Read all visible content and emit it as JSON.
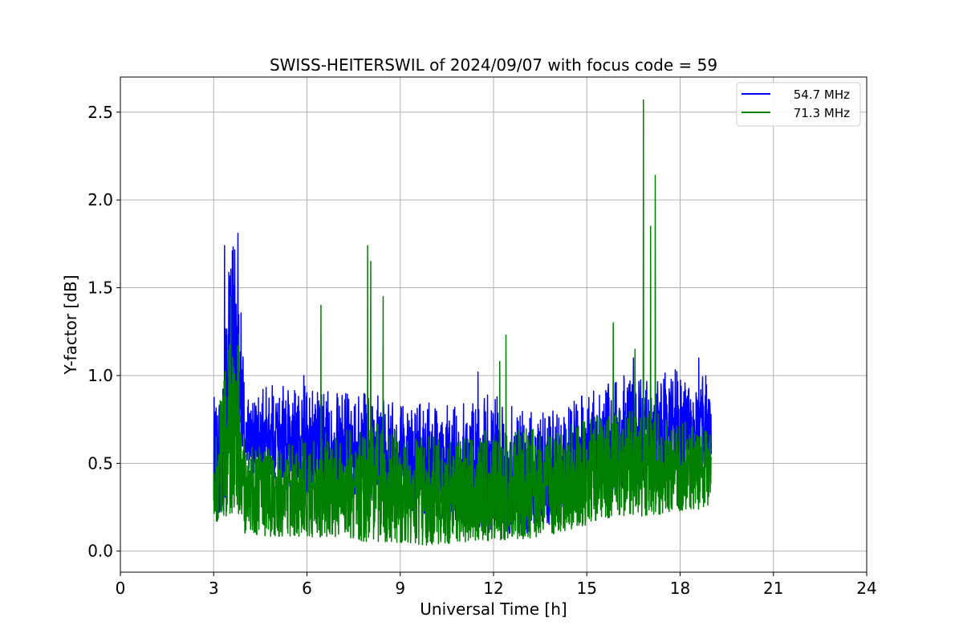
{
  "chart_data": {
    "type": "line",
    "title": "SWISS-HEITERSWIL of 2024/09/07 with focus code = 59",
    "xlabel": "Universal Time [h]",
    "ylabel": "Y-factor [dB]",
    "xlim": [
      0,
      24
    ],
    "ylim": [
      -0.12,
      2.7
    ],
    "xticks": [
      0,
      3,
      6,
      9,
      12,
      15,
      18,
      21,
      24
    ],
    "yticks": [
      0.0,
      0.5,
      1.0,
      1.5,
      2.0,
      2.5
    ],
    "xtick_labels": [
      "0",
      "3",
      "6",
      "9",
      "12",
      "15",
      "18",
      "21",
      "24"
    ],
    "ytick_labels": [
      "0.0",
      "0.5",
      "1.0",
      "1.5",
      "2.0",
      "2.5"
    ],
    "grid": true,
    "legend_position": "top-right",
    "series": [
      {
        "name": "54.7 MHz",
        "color": "#0000ff",
        "envelope": {
          "x": [
            3.0,
            3.3,
            3.5,
            3.8,
            4.0,
            5.0,
            6.0,
            7.0,
            8.0,
            9.0,
            10.0,
            11.0,
            12.0,
            13.0,
            14.0,
            15.0,
            16.0,
            17.0,
            18.0,
            19.0
          ],
          "low": [
            0.15,
            0.2,
            0.5,
            0.55,
            0.45,
            0.4,
            0.3,
            0.3,
            0.3,
            0.25,
            0.2,
            0.15,
            0.1,
            0.1,
            0.15,
            0.3,
            0.35,
            0.4,
            0.45,
            0.5
          ],
          "high": [
            0.9,
            1.0,
            1.7,
            1.8,
            0.9,
            0.95,
            0.95,
            0.9,
            0.9,
            0.85,
            0.85,
            0.85,
            0.9,
            0.8,
            0.8,
            0.9,
            1.0,
            1.0,
            1.05,
            1.0
          ]
        },
        "peaks": [
          {
            "x": 3.35,
            "y": 1.74
          },
          {
            "x": 3.6,
            "y": 1.71
          },
          {
            "x": 3.78,
            "y": 1.81
          },
          {
            "x": 5.9,
            "y": 1.0
          },
          {
            "x": 11.5,
            "y": 1.02
          },
          {
            "x": 16.5,
            "y": 1.1
          },
          {
            "x": 18.6,
            "y": 1.1
          }
        ]
      },
      {
        "name": "71.3 MHz",
        "color": "#008000",
        "envelope": {
          "x": [
            3.0,
            3.3,
            3.5,
            3.8,
            4.0,
            5.0,
            6.0,
            7.0,
            8.0,
            9.0,
            10.0,
            11.0,
            12.0,
            13.0,
            14.0,
            15.0,
            16.0,
            17.0,
            18.0,
            19.0
          ],
          "low": [
            0.15,
            0.2,
            0.2,
            0.2,
            0.1,
            0.08,
            0.08,
            0.08,
            0.05,
            0.05,
            0.03,
            0.05,
            0.06,
            0.07,
            0.1,
            0.15,
            0.2,
            0.2,
            0.22,
            0.25
          ],
          "high": [
            0.6,
            1.0,
            1.2,
            1.3,
            0.6,
            0.6,
            0.65,
            0.7,
            0.75,
            0.7,
            0.65,
            0.65,
            0.7,
            0.7,
            0.7,
            0.75,
            0.8,
            0.8,
            0.75,
            0.7
          ]
        },
        "peaks": [
          {
            "x": 3.55,
            "y": 1.45
          },
          {
            "x": 6.45,
            "y": 1.4
          },
          {
            "x": 7.95,
            "y": 1.74
          },
          {
            "x": 8.05,
            "y": 1.65
          },
          {
            "x": 8.45,
            "y": 1.45
          },
          {
            "x": 12.4,
            "y": 1.23
          },
          {
            "x": 12.2,
            "y": 1.08
          },
          {
            "x": 15.85,
            "y": 1.3
          },
          {
            "x": 16.55,
            "y": 1.15
          },
          {
            "x": 16.82,
            "y": 2.57
          },
          {
            "x": 17.05,
            "y": 1.85
          },
          {
            "x": 17.2,
            "y": 2.14
          }
        ]
      }
    ]
  }
}
